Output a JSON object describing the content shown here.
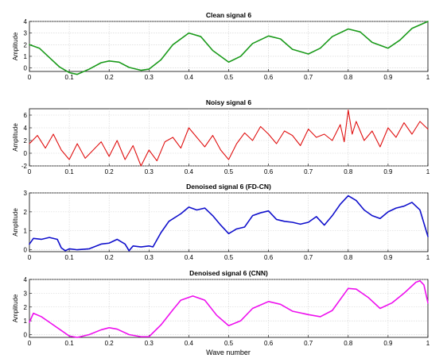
{
  "x_axis_label": "Wave number",
  "chart_data": [
    {
      "type": "line",
      "title": "Clean signal 6",
      "ylabel": "Amplitude",
      "xlim": [
        0,
        1
      ],
      "ylim": [
        -0.3,
        4
      ],
      "xticks": [
        0,
        0.1,
        0.2,
        0.3,
        0.4,
        0.5,
        0.6,
        0.7,
        0.8,
        0.9,
        1
      ],
      "xtick_labels": [
        "0",
        "0.1",
        "0.2",
        "0.3",
        "0.4",
        "0.5",
        "0.6",
        "0.7",
        "0.8",
        "0.9",
        "1"
      ],
      "yticks": [
        0,
        1,
        2,
        3,
        4
      ],
      "ytick_labels": [
        "0",
        "1",
        "2",
        "3",
        "4"
      ],
      "grid": true,
      "color": "#1a9a1a",
      "series": [
        {
          "x": [
            0,
            0.025,
            0.05,
            0.075,
            0.1,
            0.12,
            0.15,
            0.18,
            0.2,
            0.225,
            0.25,
            0.28,
            0.3,
            0.33,
            0.36,
            0.4,
            0.43,
            0.46,
            0.5,
            0.53,
            0.56,
            0.6,
            0.63,
            0.66,
            0.7,
            0.73,
            0.76,
            0.8,
            0.83,
            0.86,
            0.9,
            0.93,
            0.96,
            1.0
          ],
          "y": [
            2.0,
            1.7,
            0.9,
            0.1,
            -0.4,
            -0.55,
            -0.1,
            0.45,
            0.6,
            0.5,
            0.05,
            -0.2,
            -0.1,
            0.7,
            2.0,
            3.0,
            2.7,
            1.5,
            0.5,
            1.0,
            2.1,
            2.75,
            2.5,
            1.6,
            1.2,
            1.7,
            2.7,
            3.35,
            3.1,
            2.2,
            1.7,
            2.4,
            3.4,
            4.0
          ]
        }
      ]
    },
    {
      "type": "line",
      "title": "Noisy signal 6",
      "ylabel": "Amplitude",
      "xlim": [
        0,
        1
      ],
      "ylim": [
        -2,
        7
      ],
      "xticks": [
        0,
        0.1,
        0.2,
        0.3,
        0.4,
        0.5,
        0.6,
        0.7,
        0.8,
        0.9,
        1
      ],
      "xtick_labels": [
        "0",
        "0.1",
        "0.2",
        "0.3",
        "0.4",
        "0.5",
        "0.6",
        "0.7",
        "0.8",
        "0.9",
        "1"
      ],
      "yticks": [
        -2,
        0,
        2,
        4,
        6
      ],
      "ytick_labels": [
        "-2",
        "0",
        "2",
        "4",
        "6"
      ],
      "grid": true,
      "color": "#e01010",
      "series": [
        {
          "x": [
            0,
            0.02,
            0.04,
            0.06,
            0.08,
            0.1,
            0.12,
            0.14,
            0.16,
            0.18,
            0.2,
            0.22,
            0.24,
            0.26,
            0.28,
            0.3,
            0.32,
            0.34,
            0.36,
            0.38,
            0.4,
            0.42,
            0.44,
            0.46,
            0.48,
            0.5,
            0.52,
            0.54,
            0.56,
            0.58,
            0.6,
            0.62,
            0.64,
            0.66,
            0.68,
            0.7,
            0.72,
            0.74,
            0.76,
            0.78,
            0.79,
            0.8,
            0.81,
            0.82,
            0.84,
            0.86,
            0.88,
            0.9,
            0.92,
            0.94,
            0.96,
            0.98,
            1.0
          ],
          "y": [
            1.5,
            2.8,
            0.8,
            3.0,
            0.5,
            -1.0,
            1.5,
            -0.8,
            0.5,
            1.8,
            -0.5,
            2.0,
            -1.0,
            1.2,
            -2.0,
            0.5,
            -1.2,
            1.8,
            2.5,
            0.8,
            4.0,
            2.5,
            1.0,
            2.8,
            0.5,
            -1.0,
            1.5,
            3.2,
            2.0,
            4.2,
            3.0,
            1.5,
            3.5,
            2.8,
            1.2,
            3.8,
            2.5,
            3.0,
            2.0,
            4.5,
            1.8,
            6.8,
            3.0,
            5.0,
            2.0,
            3.5,
            1.0,
            4.0,
            2.5,
            4.8,
            3.0,
            5.0,
            3.8
          ]
        }
      ]
    },
    {
      "type": "line",
      "title": "Denoised  signal 6 (FD-CN)",
      "ylabel": "Amplitude",
      "xlim": [
        0,
        1
      ],
      "ylim": [
        -0.1,
        3
      ],
      "xticks": [
        0,
        0.1,
        0.2,
        0.3,
        0.4,
        0.5,
        0.6,
        0.7,
        0.8,
        0.9,
        1
      ],
      "xtick_labels": [
        "0",
        "0.1",
        "0.2",
        "0.3",
        "0.4",
        "0.5",
        "0.6",
        "0.7",
        "0.8",
        "0.9",
        "1"
      ],
      "yticks": [
        0,
        1,
        2,
        3
      ],
      "ytick_labels": [
        "0",
        "1",
        "2",
        "3"
      ],
      "grid": true,
      "color": "#1010cc",
      "series": [
        {
          "x": [
            0,
            0.01,
            0.03,
            0.05,
            0.07,
            0.08,
            0.09,
            0.1,
            0.12,
            0.15,
            0.18,
            0.2,
            0.22,
            0.24,
            0.25,
            0.26,
            0.28,
            0.3,
            0.31,
            0.33,
            0.35,
            0.38,
            0.4,
            0.42,
            0.44,
            0.46,
            0.48,
            0.5,
            0.52,
            0.54,
            0.56,
            0.58,
            0.6,
            0.62,
            0.64,
            0.66,
            0.68,
            0.7,
            0.72,
            0.74,
            0.76,
            0.78,
            0.8,
            0.82,
            0.84,
            0.86,
            0.88,
            0.9,
            0.92,
            0.94,
            0.96,
            0.98,
            1.0
          ],
          "y": [
            0.3,
            0.6,
            0.55,
            0.65,
            0.55,
            0.1,
            -0.05,
            0.05,
            0.0,
            0.05,
            0.3,
            0.35,
            0.55,
            0.3,
            -0.05,
            0.2,
            0.15,
            0.2,
            0.15,
            0.9,
            1.5,
            1.9,
            2.25,
            2.1,
            2.2,
            1.8,
            1.3,
            0.85,
            1.1,
            1.2,
            1.8,
            1.95,
            2.05,
            1.6,
            1.5,
            1.45,
            1.35,
            1.45,
            1.75,
            1.3,
            1.8,
            2.4,
            2.85,
            2.6,
            2.1,
            1.8,
            1.65,
            2.0,
            2.2,
            2.3,
            2.5,
            2.1,
            0.7
          ]
        }
      ]
    },
    {
      "type": "line",
      "title": "Denoised  signal 6 (CNN)",
      "ylabel": "Amplitude",
      "xlim": [
        0,
        1
      ],
      "ylim": [
        -0.2,
        4
      ],
      "xticks": [
        0,
        0.1,
        0.2,
        0.3,
        0.4,
        0.5,
        0.6,
        0.7,
        0.8,
        0.9,
        1
      ],
      "xtick_labels": [
        "0",
        "0.1",
        "0.2",
        "0.3",
        "0.4",
        "0.5",
        "0.6",
        "0.7",
        "0.8",
        "0.9",
        "1"
      ],
      "yticks": [
        0,
        1,
        2,
        3,
        4
      ],
      "ytick_labels": [
        "0",
        "1",
        "2",
        "3",
        "4"
      ],
      "grid": true,
      "color": "#ee10ee",
      "series": [
        {
          "x": [
            0,
            0.01,
            0.03,
            0.05,
            0.08,
            0.1,
            0.12,
            0.15,
            0.18,
            0.2,
            0.22,
            0.25,
            0.28,
            0.3,
            0.33,
            0.36,
            0.38,
            0.41,
            0.44,
            0.47,
            0.5,
            0.53,
            0.56,
            0.6,
            0.63,
            0.66,
            0.7,
            0.73,
            0.76,
            0.8,
            0.82,
            0.85,
            0.88,
            0.91,
            0.94,
            0.97,
            0.98,
            0.99,
            1.0
          ],
          "y": [
            0.9,
            1.55,
            1.3,
            0.9,
            0.3,
            -0.1,
            -0.2,
            0.0,
            0.35,
            0.5,
            0.4,
            0.0,
            -0.15,
            -0.15,
            0.7,
            1.8,
            2.5,
            2.8,
            2.5,
            1.4,
            0.65,
            1.0,
            1.9,
            2.4,
            2.2,
            1.7,
            1.45,
            1.3,
            1.75,
            3.35,
            3.3,
            2.7,
            1.9,
            2.3,
            3.0,
            3.8,
            3.9,
            3.6,
            2.3
          ]
        }
      ]
    }
  ]
}
